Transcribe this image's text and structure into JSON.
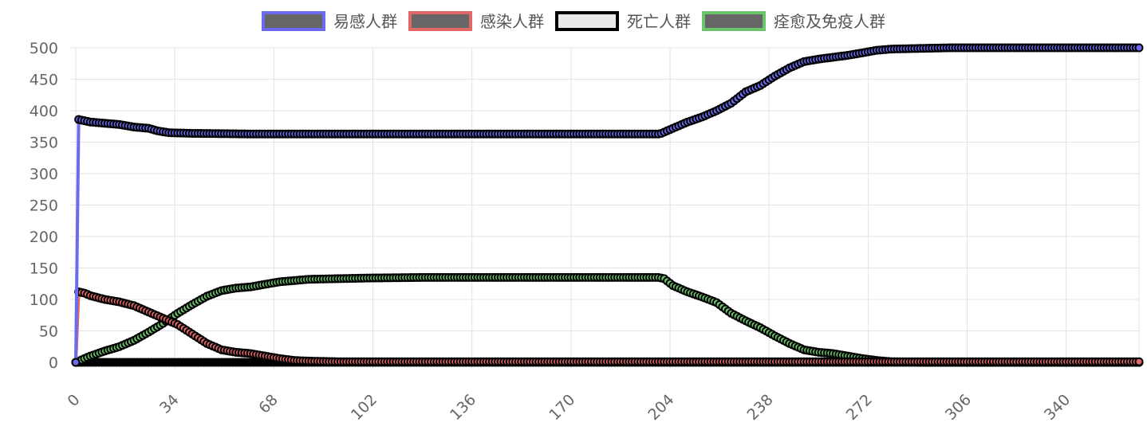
{
  "chart_data": {
    "type": "line",
    "title": "",
    "xlabel": "",
    "ylabel": "",
    "xlim": [
      0,
      365
    ],
    "ylim": [
      0,
      500
    ],
    "x_ticks": [
      "0",
      "34",
      "68",
      "102",
      "136",
      "170",
      "204",
      "238",
      "272",
      "306",
      "340"
    ],
    "y_ticks": [
      "0",
      "50",
      "100",
      "150",
      "200",
      "250",
      "300",
      "350",
      "400",
      "450",
      "500"
    ],
    "grid": true,
    "legend_position": "top",
    "series": [
      {
        "name": "易感人群",
        "color": "#6b6bf0",
        "fill": "#666666",
        "points": [
          [
            0,
            0
          ],
          [
            1,
            386
          ],
          [
            2,
            385
          ],
          [
            5,
            382
          ],
          [
            10,
            380
          ],
          [
            15,
            378
          ],
          [
            20,
            374
          ],
          [
            25,
            372
          ],
          [
            28,
            368
          ],
          [
            32,
            365
          ],
          [
            40,
            364
          ],
          [
            60,
            363
          ],
          [
            100,
            363
          ],
          [
            150,
            363
          ],
          [
            200,
            363
          ],
          [
            201,
            364
          ],
          [
            205,
            372
          ],
          [
            210,
            382
          ],
          [
            215,
            390
          ],
          [
            220,
            400
          ],
          [
            225,
            412
          ],
          [
            230,
            430
          ],
          [
            235,
            440
          ],
          [
            240,
            455
          ],
          [
            245,
            468
          ],
          [
            250,
            478
          ],
          [
            255,
            482
          ],
          [
            260,
            485
          ],
          [
            265,
            488
          ],
          [
            270,
            492
          ],
          [
            275,
            496
          ],
          [
            280,
            498
          ],
          [
            290,
            499
          ],
          [
            300,
            500
          ],
          [
            365,
            500
          ]
        ]
      },
      {
        "name": "感染人群",
        "color": "#e26868",
        "fill": "#666666",
        "points": [
          [
            0,
            0
          ],
          [
            1,
            112
          ],
          [
            3,
            110
          ],
          [
            5,
            106
          ],
          [
            10,
            100
          ],
          [
            15,
            96
          ],
          [
            20,
            90
          ],
          [
            25,
            80
          ],
          [
            30,
            70
          ],
          [
            35,
            60
          ],
          [
            40,
            45
          ],
          [
            45,
            30
          ],
          [
            50,
            20
          ],
          [
            55,
            16
          ],
          [
            60,
            14
          ],
          [
            65,
            10
          ],
          [
            70,
            6
          ],
          [
            75,
            3
          ],
          [
            80,
            2
          ],
          [
            90,
            1
          ],
          [
            100,
            1
          ],
          [
            365,
            1
          ]
        ]
      },
      {
        "name": "死亡人群",
        "color": "#000000",
        "fill": "#e9e9e9",
        "points": [
          [
            0,
            0
          ],
          [
            10,
            0
          ],
          [
            20,
            0
          ],
          [
            40,
            0
          ],
          [
            60,
            0
          ],
          [
            80,
            0
          ],
          [
            365,
            0
          ]
        ]
      },
      {
        "name": "痊愈及免疫人群",
        "color": "#6cc46c",
        "fill": "#666666",
        "points": [
          [
            0,
            0
          ],
          [
            1,
            2
          ],
          [
            5,
            10
          ],
          [
            10,
            18
          ],
          [
            15,
            25
          ],
          [
            20,
            35
          ],
          [
            25,
            48
          ],
          [
            30,
            62
          ],
          [
            35,
            78
          ],
          [
            40,
            92
          ],
          [
            45,
            105
          ],
          [
            50,
            114
          ],
          [
            55,
            118
          ],
          [
            60,
            120
          ],
          [
            65,
            124
          ],
          [
            70,
            128
          ],
          [
            75,
            130
          ],
          [
            80,
            132
          ],
          [
            90,
            133
          ],
          [
            100,
            134
          ],
          [
            120,
            135
          ],
          [
            150,
            135
          ],
          [
            200,
            135
          ],
          [
            202,
            133
          ],
          [
            205,
            122
          ],
          [
            210,
            112
          ],
          [
            215,
            104
          ],
          [
            220,
            95
          ],
          [
            225,
            78
          ],
          [
            230,
            66
          ],
          [
            235,
            55
          ],
          [
            240,
            42
          ],
          [
            245,
            30
          ],
          [
            250,
            20
          ],
          [
            255,
            16
          ],
          [
            260,
            14
          ],
          [
            265,
            10
          ],
          [
            270,
            6
          ],
          [
            275,
            3
          ],
          [
            280,
            1
          ],
          [
            290,
            0
          ],
          [
            365,
            0
          ]
        ]
      }
    ]
  }
}
